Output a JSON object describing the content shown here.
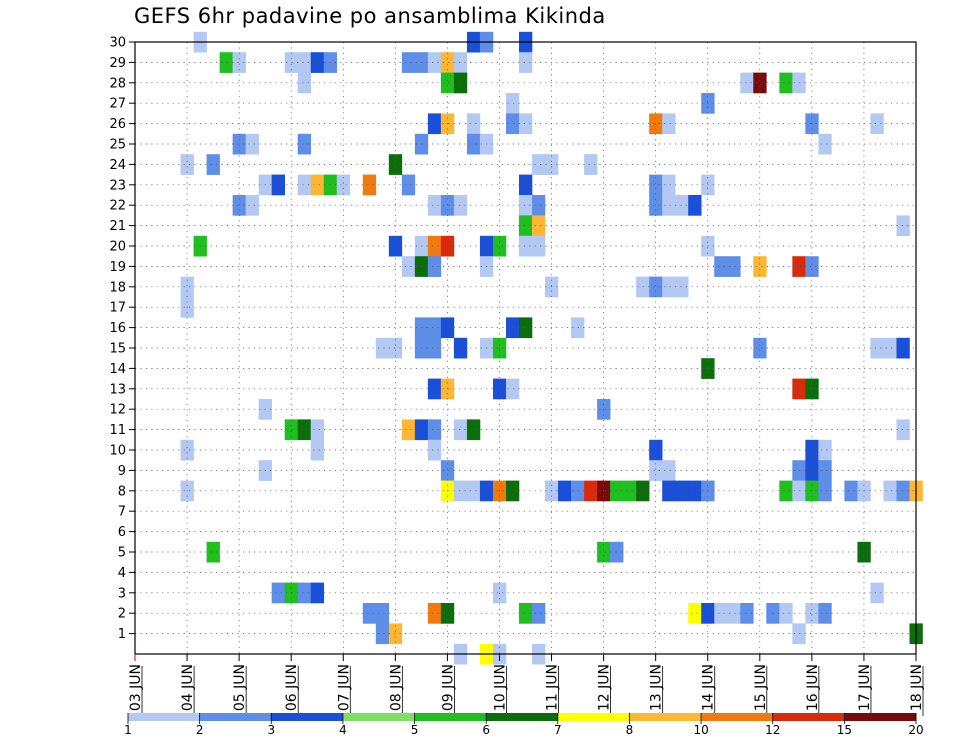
{
  "chart_data": {
    "type": "heatmap",
    "title": "GEFS 6hr padavine po ansamblima Kikinda",
    "x_tick_labels": [
      "03 JUN",
      "04 JUN",
      "05 JUN",
      "06 JUN",
      "07 JUN",
      "08 JUN",
      "09 JUN",
      "10 JUN",
      "11 JUN",
      "12 JUN",
      "13 JUN",
      "14 JUN",
      "15 JUN",
      "16 JUN",
      "17 JUN",
      "18 JUN"
    ],
    "y_tick_labels": [
      1,
      2,
      3,
      4,
      5,
      6,
      7,
      8,
      9,
      10,
      11,
      12,
      13,
      14,
      15,
      16,
      17,
      18,
      19,
      20,
      21,
      22,
      23,
      24,
      25,
      26,
      27,
      28,
      29,
      30
    ],
    "time_steps_per_day": 4,
    "x_range_steps": [
      0,
      60
    ],
    "y_range": [
      0,
      30
    ],
    "grid": true,
    "colorbar": {
      "labels": [
        1,
        2,
        3,
        4,
        5,
        6,
        7,
        8,
        10,
        12,
        15,
        20
      ],
      "colors": [
        "#b3c8f2",
        "#5e8ee8",
        "#1a4fd8",
        "#7ee062",
        "#1fbf1f",
        "#0b6e0b",
        "#ffff00",
        "#ffb733",
        "#f27a0c",
        "#d92b0c",
        "#7a0a0a"
      ]
    },
    "cells": [
      [
        5,
        30,
        1
      ],
      [
        26,
        30,
        3
      ],
      [
        27,
        30,
        2
      ],
      [
        30,
        30,
        3
      ],
      [
        7,
        29,
        5
      ],
      [
        8,
        29,
        1
      ],
      [
        12,
        29,
        1
      ],
      [
        13,
        29,
        1
      ],
      [
        14,
        29,
        3
      ],
      [
        15,
        29,
        2
      ],
      [
        21,
        29,
        2
      ],
      [
        22,
        29,
        2
      ],
      [
        23,
        29,
        1
      ],
      [
        24,
        29,
        8
      ],
      [
        25,
        29,
        1
      ],
      [
        30,
        29,
        1
      ],
      [
        13,
        28,
        1
      ],
      [
        24,
        28,
        5
      ],
      [
        25,
        28,
        6
      ],
      [
        47,
        28,
        1
      ],
      [
        48,
        28,
        11
      ],
      [
        50,
        28,
        5
      ],
      [
        51,
        28,
        1
      ],
      [
        29,
        27,
        1
      ],
      [
        44,
        27,
        2
      ],
      [
        23,
        26,
        3
      ],
      [
        24,
        26,
        8
      ],
      [
        26,
        26,
        1
      ],
      [
        29,
        26,
        2
      ],
      [
        30,
        26,
        1
      ],
      [
        40,
        26,
        9
      ],
      [
        41,
        26,
        1
      ],
      [
        52,
        26,
        2
      ],
      [
        57,
        26,
        1
      ],
      [
        8,
        25,
        2
      ],
      [
        9,
        25,
        1
      ],
      [
        13,
        25,
        2
      ],
      [
        22,
        25,
        2
      ],
      [
        26,
        25,
        2
      ],
      [
        27,
        25,
        1
      ],
      [
        53,
        25,
        1
      ],
      [
        4,
        24,
        1
      ],
      [
        6,
        24,
        2
      ],
      [
        20,
        24,
        6
      ],
      [
        31,
        24,
        1
      ],
      [
        32,
        24,
        1
      ],
      [
        35,
        24,
        1
      ],
      [
        10,
        23,
        1
      ],
      [
        11,
        23,
        3
      ],
      [
        13,
        23,
        1
      ],
      [
        14,
        23,
        8
      ],
      [
        15,
        23,
        5
      ],
      [
        16,
        23,
        1
      ],
      [
        18,
        23,
        9
      ],
      [
        21,
        23,
        2
      ],
      [
        30,
        23,
        3
      ],
      [
        40,
        23,
        2
      ],
      [
        41,
        23,
        1
      ],
      [
        44,
        23,
        1
      ],
      [
        8,
        22,
        2
      ],
      [
        9,
        22,
        1
      ],
      [
        23,
        22,
        1
      ],
      [
        24,
        22,
        2
      ],
      [
        25,
        22,
        1
      ],
      [
        30,
        22,
        1
      ],
      [
        31,
        22,
        2
      ],
      [
        40,
        22,
        2
      ],
      [
        41,
        22,
        1
      ],
      [
        42,
        22,
        1
      ],
      [
        43,
        22,
        3
      ],
      [
        30,
        21,
        5
      ],
      [
        31,
        21,
        8
      ],
      [
        59,
        21,
        1
      ],
      [
        5,
        20,
        5
      ],
      [
        20,
        20,
        3
      ],
      [
        22,
        20,
        1
      ],
      [
        23,
        20,
        9
      ],
      [
        24,
        20,
        10
      ],
      [
        27,
        20,
        3
      ],
      [
        28,
        20,
        5
      ],
      [
        30,
        20,
        1
      ],
      [
        31,
        20,
        1
      ],
      [
        44,
        20,
        1
      ],
      [
        21,
        19,
        1
      ],
      [
        22,
        19,
        6
      ],
      [
        23,
        19,
        2
      ],
      [
        27,
        19,
        1
      ],
      [
        45,
        19,
        2
      ],
      [
        46,
        19,
        2
      ],
      [
        48,
        19,
        8
      ],
      [
        51,
        19,
        10
      ],
      [
        52,
        19,
        2
      ],
      [
        4,
        18,
        1
      ],
      [
        32,
        18,
        1
      ],
      [
        39,
        18,
        1
      ],
      [
        40,
        18,
        2
      ],
      [
        41,
        18,
        1
      ],
      [
        42,
        18,
        1
      ],
      [
        4,
        17,
        1
      ],
      [
        22,
        16,
        2
      ],
      [
        23,
        16,
        2
      ],
      [
        24,
        16,
        3
      ],
      [
        29,
        16,
        3
      ],
      [
        30,
        16,
        6
      ],
      [
        34,
        16,
        1
      ],
      [
        19,
        15,
        1
      ],
      [
        20,
        15,
        1
      ],
      [
        22,
        15,
        2
      ],
      [
        23,
        15,
        2
      ],
      [
        25,
        15,
        3
      ],
      [
        27,
        15,
        1
      ],
      [
        28,
        15,
        5
      ],
      [
        48,
        15,
        2
      ],
      [
        57,
        15,
        1
      ],
      [
        58,
        15,
        1
      ],
      [
        59,
        15,
        3
      ],
      [
        44,
        14,
        6
      ],
      [
        23,
        13,
        3
      ],
      [
        24,
        13,
        8
      ],
      [
        28,
        13,
        3
      ],
      [
        29,
        13,
        1
      ],
      [
        51,
        13,
        10
      ],
      [
        52,
        13,
        6
      ],
      [
        10,
        12,
        1
      ],
      [
        36,
        12,
        2
      ],
      [
        12,
        11,
        5
      ],
      [
        13,
        11,
        6
      ],
      [
        14,
        11,
        1
      ],
      [
        21,
        11,
        8
      ],
      [
        22,
        11,
        3
      ],
      [
        23,
        11,
        2
      ],
      [
        25,
        11,
        1
      ],
      [
        26,
        11,
        6
      ],
      [
        59,
        11,
        1
      ],
      [
        4,
        10,
        1
      ],
      [
        14,
        10,
        1
      ],
      [
        23,
        10,
        1
      ],
      [
        40,
        10,
        3
      ],
      [
        52,
        10,
        3
      ],
      [
        53,
        10,
        1
      ],
      [
        10,
        9,
        1
      ],
      [
        24,
        9,
        2
      ],
      [
        40,
        9,
        1
      ],
      [
        41,
        9,
        1
      ],
      [
        51,
        9,
        2
      ],
      [
        52,
        9,
        3
      ],
      [
        53,
        9,
        2
      ],
      [
        4,
        8,
        1
      ],
      [
        24,
        8,
        7
      ],
      [
        25,
        8,
        1
      ],
      [
        26,
        8,
        1
      ],
      [
        27,
        8,
        3
      ],
      [
        28,
        8,
        9
      ],
      [
        29,
        8,
        6
      ],
      [
        32,
        8,
        1
      ],
      [
        33,
        8,
        3
      ],
      [
        34,
        8,
        2
      ],
      [
        35,
        8,
        10
      ],
      [
        36,
        8,
        11
      ],
      [
        37,
        8,
        5
      ],
      [
        38,
        8,
        5
      ],
      [
        39,
        8,
        6
      ],
      [
        41,
        8,
        3
      ],
      [
        42,
        8,
        3
      ],
      [
        43,
        8,
        3
      ],
      [
        44,
        8,
        2
      ],
      [
        50,
        8,
        5
      ],
      [
        51,
        8,
        1
      ],
      [
        52,
        8,
        5
      ],
      [
        53,
        8,
        2
      ],
      [
        55,
        8,
        2
      ],
      [
        56,
        8,
        1
      ],
      [
        58,
        8,
        1
      ],
      [
        59,
        8,
        2
      ],
      [
        60,
        8,
        8
      ],
      [
        6,
        5,
        5
      ],
      [
        36,
        5,
        5
      ],
      [
        37,
        5,
        2
      ],
      [
        56,
        5,
        6
      ],
      [
        11,
        3,
        2
      ],
      [
        12,
        3,
        5
      ],
      [
        13,
        3,
        2
      ],
      [
        14,
        3,
        3
      ],
      [
        28,
        3,
        1
      ],
      [
        57,
        3,
        1
      ],
      [
        18,
        2,
        2
      ],
      [
        19,
        2,
        2
      ],
      [
        23,
        2,
        9
      ],
      [
        24,
        2,
        6
      ],
      [
        30,
        2,
        5
      ],
      [
        31,
        2,
        2
      ],
      [
        43,
        2,
        7
      ],
      [
        44,
        2,
        3
      ],
      [
        45,
        2,
        1
      ],
      [
        46,
        2,
        1
      ],
      [
        47,
        2,
        2
      ],
      [
        49,
        2,
        2
      ],
      [
        50,
        2,
        1
      ],
      [
        52,
        2,
        1
      ],
      [
        53,
        2,
        2
      ],
      [
        19,
        1,
        2
      ],
      [
        20,
        1,
        8
      ],
      [
        51,
        1,
        1
      ],
      [
        60,
        1,
        6
      ],
      [
        25,
        0,
        1
      ],
      [
        27,
        0,
        7
      ],
      [
        28,
        0,
        1
      ],
      [
        31,
        0,
        1
      ]
    ]
  }
}
